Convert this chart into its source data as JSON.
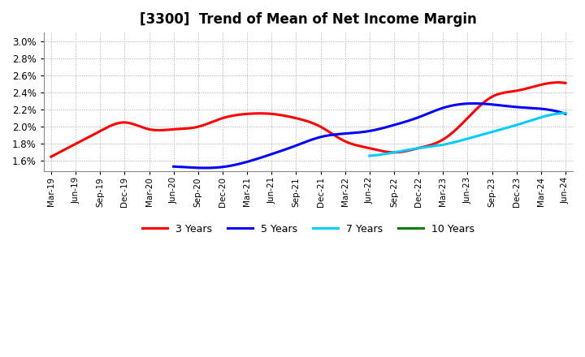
{
  "title": "[3300]  Trend of Mean of Net Income Margin",
  "title_fontsize": 12,
  "background_color": "#ffffff",
  "grid_color": "#aaaaaa",
  "ylim": [
    0.0148,
    0.031
  ],
  "yticks": [
    0.016,
    0.018,
    0.02,
    0.022,
    0.024,
    0.026,
    0.028,
    0.03
  ],
  "xtick_labels": [
    "Mar-19",
    "Jun-19",
    "Sep-19",
    "Dec-19",
    "Mar-20",
    "Jun-20",
    "Sep-20",
    "Dec-20",
    "Mar-21",
    "Jun-21",
    "Sep-21",
    "Dec-21",
    "Mar-22",
    "Jun-22",
    "Sep-22",
    "Dec-22",
    "Mar-23",
    "Jun-23",
    "Sep-23",
    "Dec-23",
    "Mar-24",
    "Jun-24"
  ],
  "series": [
    {
      "label": "3 Years",
      "color": "#ff0000",
      "x_indices": [
        0,
        1,
        2,
        3,
        4,
        5,
        6,
        7,
        8,
        9,
        10,
        11,
        12,
        13,
        14,
        15,
        16,
        17,
        18,
        19,
        20,
        21
      ],
      "values": [
        0.0165,
        0.018,
        0.0195,
        0.0205,
        0.0197,
        0.0197,
        0.02,
        0.021,
        0.0215,
        0.0215,
        0.021,
        0.02,
        0.0183,
        0.0175,
        0.017,
        0.0175,
        0.0185,
        0.021,
        0.0235,
        0.0242,
        0.0249,
        0.0251
      ]
    },
    {
      "label": "5 Years",
      "color": "#0000ff",
      "x_indices": [
        5,
        6,
        7,
        8,
        9,
        10,
        11,
        12,
        13,
        14,
        15,
        16,
        17,
        18,
        19,
        20,
        21
      ],
      "values": [
        0.01535,
        0.0152,
        0.0153,
        0.0159,
        0.0168,
        0.0178,
        0.0188,
        0.0192,
        0.0195,
        0.0202,
        0.0211,
        0.0222,
        0.0227,
        0.0226,
        0.0223,
        0.0221,
        0.0215
      ]
    },
    {
      "label": "7 Years",
      "color": "#00ccff",
      "x_indices": [
        13,
        14,
        15,
        16,
        17,
        18,
        19,
        20,
        21
      ],
      "values": [
        0.0166,
        0.017,
        0.0175,
        0.0179,
        0.0186,
        0.0194,
        0.0202,
        0.0211,
        0.0216
      ]
    },
    {
      "label": "10 Years",
      "color": "#008000",
      "x_indices": [],
      "values": []
    }
  ],
  "legend_labels": [
    "3 Years",
    "5 Years",
    "7 Years",
    "10 Years"
  ],
  "legend_colors": [
    "#ff0000",
    "#0000ff",
    "#00ccff",
    "#008000"
  ]
}
